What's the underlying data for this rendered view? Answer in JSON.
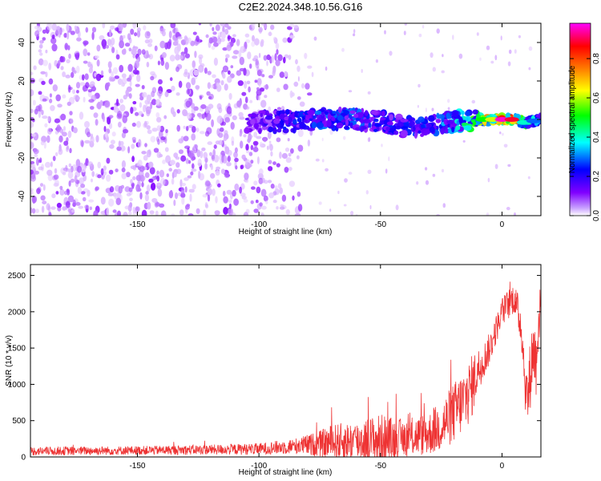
{
  "title": "C2E2.2024.348.10.56.G16",
  "chart_data": [
    {
      "type": "heatmap",
      "xlabel": "Height of straight line (km)",
      "ylabel": "Frequency (Hz)",
      "xlim": [
        -194,
        16
      ],
      "ylim": [
        -50,
        50
      ],
      "xticks": [
        -150,
        -100,
        -50,
        0
      ],
      "yticks": [
        -40,
        -20,
        0,
        20,
        40
      ],
      "colorbar": {
        "label": "Normalized spectral amplitude",
        "range": [
          0,
          0.98
        ],
        "ticks": [
          "0.0",
          "0.2",
          "0.4",
          "0.6",
          "0.8"
        ],
        "tick_values": [
          0,
          0.2,
          0.4,
          0.6,
          0.8
        ],
        "colormap": [
          "#ffffff",
          "#8000ff",
          "#0000ff",
          "#00ffff",
          "#00ff00",
          "#ffff00",
          "#ff8000",
          "#ff0000",
          "#ff00ff"
        ]
      },
      "ridge": {
        "x": [
          -105,
          -90,
          -75,
          -60,
          -50,
          -40,
          -30,
          -20,
          -10,
          0,
          5,
          10,
          15
        ],
        "y": [
          -1,
          -1,
          0,
          0,
          -1,
          -4,
          -3,
          -1,
          0,
          0,
          0,
          -2,
          0
        ],
        "amplitude": [
          0.15,
          0.25,
          0.3,
          0.3,
          0.28,
          0.25,
          0.3,
          0.35,
          0.55,
          0.98,
          0.9,
          0.45,
          0.35
        ]
      },
      "noise_region_x": [
        -194,
        -80
      ],
      "grid": false
    },
    {
      "type": "line",
      "xlabel": "Height of straight line (km)",
      "ylabel": "SNR (10 * v/v)",
      "xlim": [
        -194,
        16
      ],
      "ylim": [
        0,
        2650
      ],
      "xticks": [
        -150,
        -100,
        -50,
        0
      ],
      "yticks": [
        0,
        500,
        1000,
        1500,
        2000,
        2500
      ],
      "color": "#ee3333",
      "envelope": {
        "x": [
          -194,
          -150,
          -120,
          -100,
          -85,
          -75,
          -70,
          -60,
          -55,
          -50,
          -45,
          -40,
          -30,
          -25,
          -20,
          -15,
          -12,
          -10,
          -8,
          -5,
          -2,
          0,
          5,
          8,
          10,
          11,
          12,
          13,
          14,
          15,
          16
        ],
        "base": [
          80,
          90,
          100,
          110,
          150,
          180,
          200,
          220,
          230,
          240,
          250,
          260,
          320,
          420,
          600,
          800,
          1000,
          1200,
          1300,
          1500,
          1800,
          2000,
          2200,
          1800,
          800,
          900,
          1300,
          1500,
          1300,
          1900,
          2000
        ],
        "spread": [
          60,
          60,
          70,
          80,
          110,
          180,
          250,
          280,
          320,
          360,
          300,
          260,
          300,
          350,
          420,
          450,
          430,
          300,
          250,
          220,
          200,
          200,
          220,
          300,
          400,
          500,
          500,
          450,
          500,
          400,
          350
        ]
      },
      "grid": false
    }
  ]
}
